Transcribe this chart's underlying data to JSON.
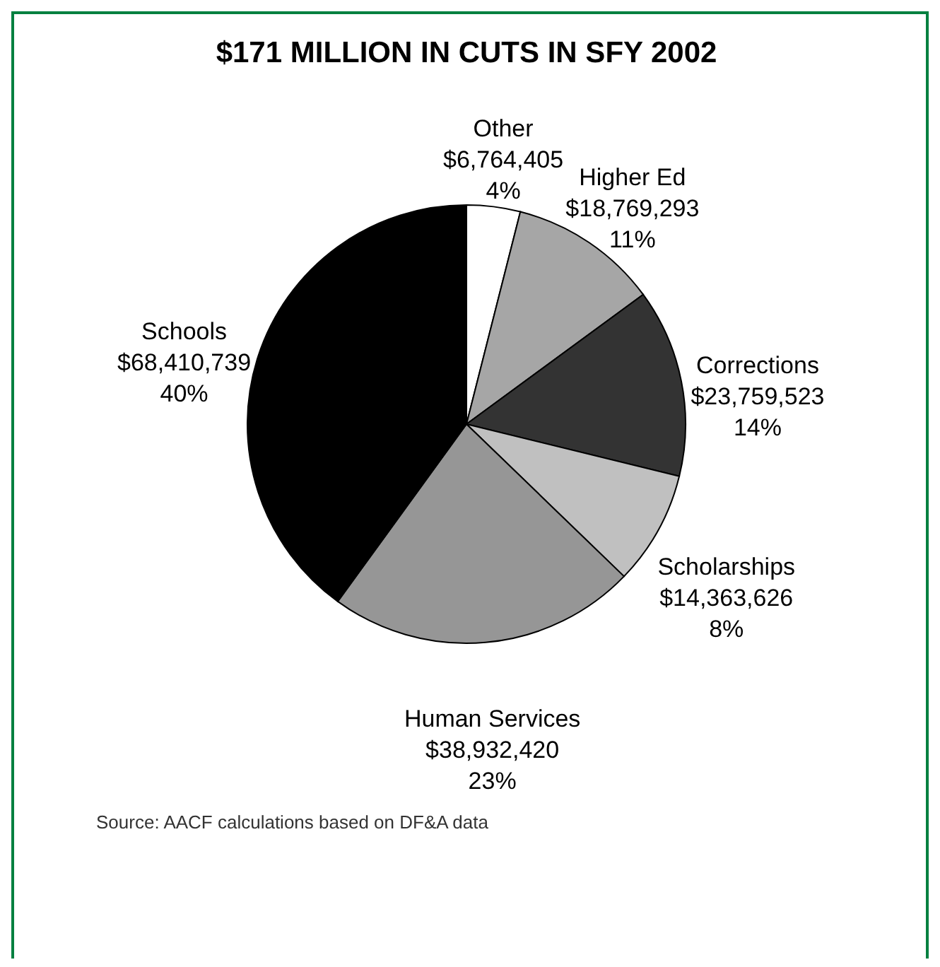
{
  "chart_data": {
    "type": "pie",
    "title": "$171 MILLION IN CUTS IN SFY 2002",
    "categories": [
      "Other",
      "Higher Ed",
      "Corrections",
      "Scholarships",
      "Human Services",
      "Schools"
    ],
    "values": [
      6764405,
      18769293,
      23759523,
      14363626,
      38932420,
      68410739
    ],
    "colors": [
      "#ffffff",
      "#a6a6a6",
      "#333333",
      "#c0c0c0",
      "#969696",
      "#000000"
    ],
    "value_labels": [
      "$6,764,405\n4%",
      "$18,769,293\n11%",
      "$23,759,523\n14%",
      "$14,363,626\n8%",
      "$38,932,420\n23%",
      "$68,410,739\n40%"
    ],
    "legend": false,
    "annotations": [
      "Source: AACF calculations based on DF&A data"
    ]
  }
}
